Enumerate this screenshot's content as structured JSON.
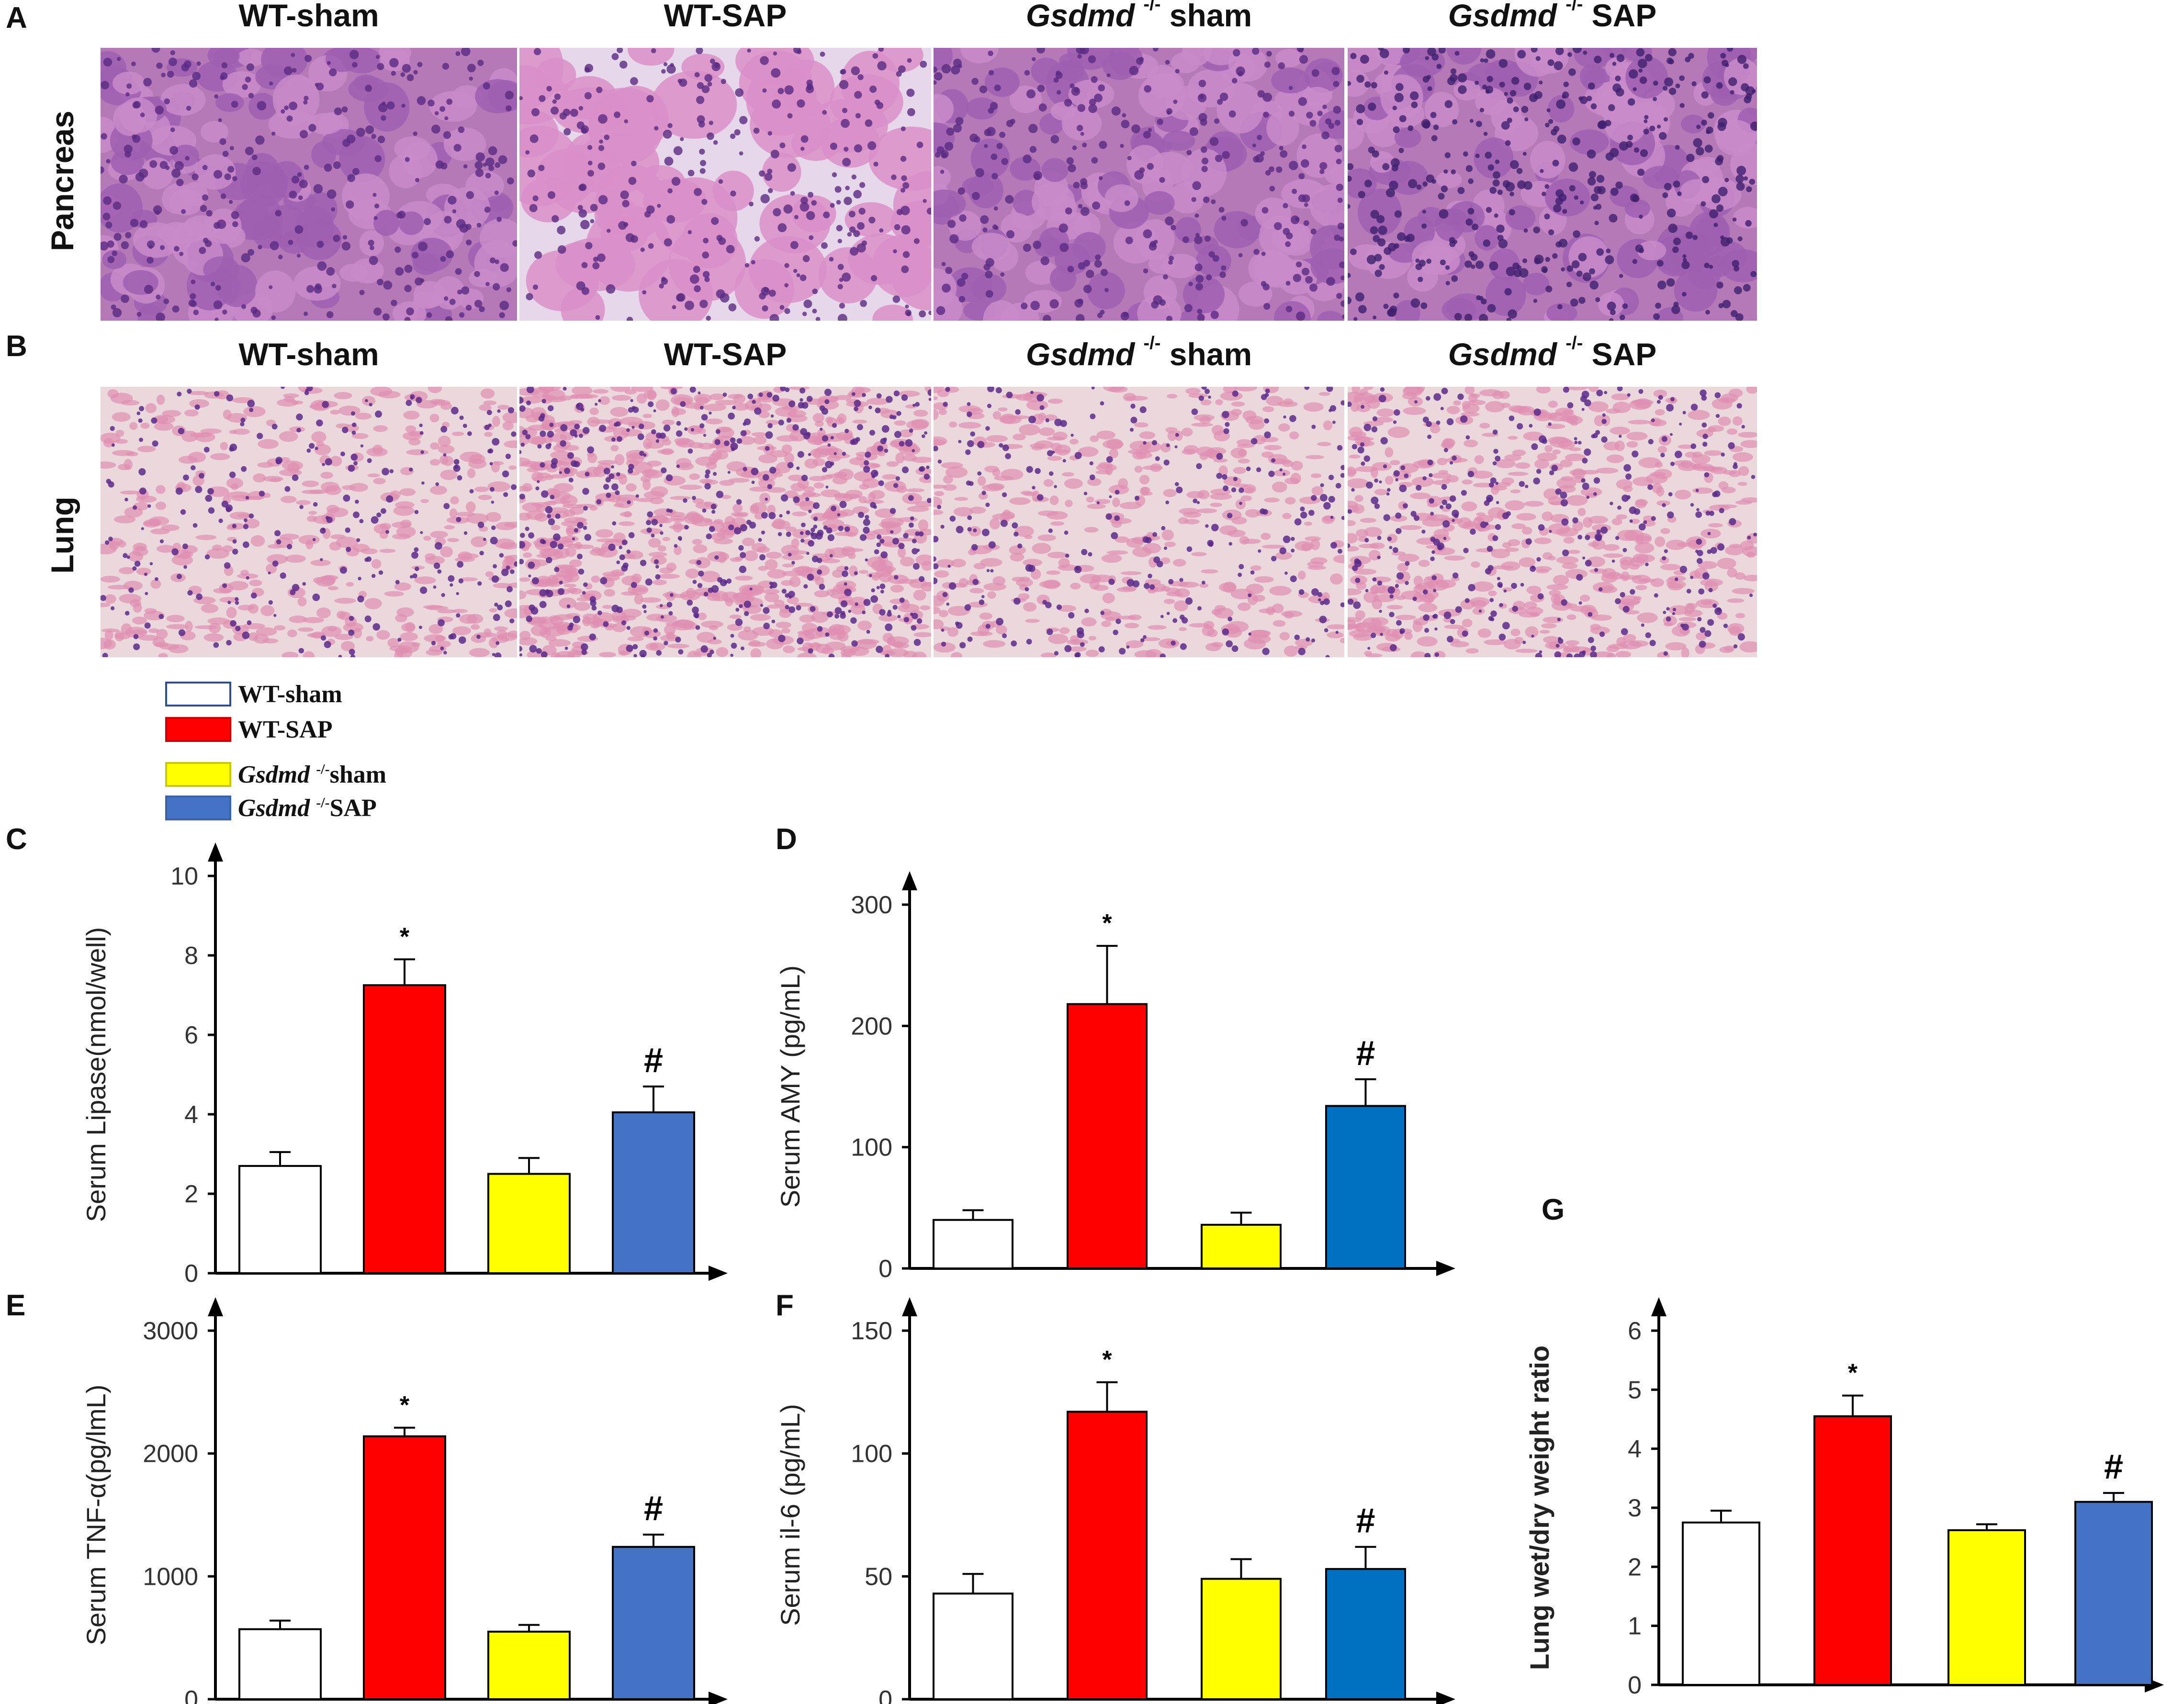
{
  "histology": {
    "panel_a_letter": "A",
    "panel_b_letter": "B",
    "row_a_label": "Pancreas",
    "row_b_label": "Lung",
    "columns": [
      {
        "prefix": "WT-sham",
        "gene": "",
        "suffix": ""
      },
      {
        "prefix": "WT-SAP",
        "gene": "",
        "suffix": ""
      },
      {
        "prefix": "",
        "gene": "Gsdmd",
        "sup": "-/-",
        "suffix": " sham"
      },
      {
        "prefix": "",
        "gene": "Gsdmd",
        "sup": "-/-",
        "suffix": " SAP"
      }
    ]
  },
  "legend": {
    "items": [
      {
        "prefix": "WT-sham",
        "gene": "",
        "sup": "",
        "suffix": "",
        "fill": "#ffffff",
        "stroke": "#2f4f8f"
      },
      {
        "prefix": "WT-SAP",
        "gene": "",
        "sup": "",
        "suffix": "",
        "fill": "#ff0000",
        "stroke": "#cc0000"
      },
      {
        "prefix": "",
        "gene": "Gsdmd",
        "sup": "-/-",
        "suffix": "sham",
        "fill": "#ffff00",
        "stroke": "#c9c900"
      },
      {
        "prefix": "",
        "gene": "Gsdmd",
        "sup": "-/-",
        "suffix": "SAP",
        "fill": "#4472c4",
        "stroke": "#3a62aa"
      }
    ]
  },
  "colors": {
    "wt_sham": "#ffffff",
    "wt_sap": "#ff0000",
    "ko_sham": "#ffff00",
    "ko_sap": "#4472c4",
    "ko_sap_alt": "#0070c0",
    "he_pink": "#d9a0c8",
    "he_purple": "#7a3f9a"
  },
  "chart_data": [
    {
      "panel": "C",
      "type": "bar",
      "ylabel": "Serum Lipase(nmol/well)",
      "ylim": [
        0,
        10
      ],
      "yticks": [
        "0",
        "2",
        "4",
        "6",
        "8",
        "10"
      ],
      "categories": [
        "WT-sham",
        "WT-SAP",
        "Gsdmd-/-sham",
        "Gsdmd-/-SAP"
      ],
      "values": [
        2.7,
        7.25,
        2.5,
        4.05
      ],
      "errors": [
        0.35,
        0.65,
        0.4,
        0.65
      ],
      "annotations": [
        "",
        "*",
        "",
        "#"
      ]
    },
    {
      "panel": "D",
      "type": "bar",
      "ylabel": "Serum AMY (pg/mL)",
      "ylim": [
        0,
        300
      ],
      "yticks": [
        "0",
        "100",
        "200",
        "300"
      ],
      "categories": [
        "WT-sham",
        "WT-SAP",
        "Gsdmd-/-sham",
        "Gsdmd-/-SAP"
      ],
      "values": [
        40,
        218,
        36,
        134
      ],
      "errors": [
        8,
        48,
        10,
        22
      ],
      "annotations": [
        "",
        "*",
        "",
        "#"
      ]
    },
    {
      "panel": "E",
      "type": "bar",
      "ylabel": "Serum TNF-α(pg/lmL)",
      "ylim": [
        0,
        3000
      ],
      "yticks": [
        "0",
        "1000",
        "2000",
        "3000"
      ],
      "categories": [
        "WT-sham",
        "WT-SAP",
        "Gsdmd-/-sham",
        "Gsdmd-/-SAP"
      ],
      "values": [
        570,
        2140,
        550,
        1240
      ],
      "errors": [
        70,
        70,
        55,
        100
      ],
      "annotations": [
        "",
        "*",
        "",
        "#"
      ]
    },
    {
      "panel": "F",
      "type": "bar",
      "ylabel": "Serum il-6 (pg/mL)",
      "ylim": [
        0,
        150
      ],
      "yticks": [
        "0",
        "50",
        "100",
        "150"
      ],
      "categories": [
        "WT-sham",
        "WT-SAP",
        "Gsdmd-/-sham",
        "Gsdmd-/-SAP"
      ],
      "values": [
        43,
        117,
        49,
        53
      ],
      "errors": [
        8,
        12,
        8,
        9
      ],
      "annotations": [
        "",
        "*",
        "",
        "#"
      ]
    },
    {
      "panel": "G",
      "type": "bar",
      "ylabel": "Lung wet/dry weight ratio",
      "ylim": [
        0,
        6
      ],
      "yticks": [
        "0",
        "1",
        "2",
        "3",
        "4",
        "5",
        "6"
      ],
      "categories": [
        "WT-sham",
        "WT-SAP",
        "Gsdmd-/-sham",
        "Gsdmd-/-SAP"
      ],
      "values": [
        2.75,
        4.55,
        2.62,
        3.1
      ],
      "errors": [
        0.2,
        0.35,
        0.1,
        0.15
      ],
      "annotations": [
        "",
        "*",
        "",
        "#"
      ]
    }
  ]
}
